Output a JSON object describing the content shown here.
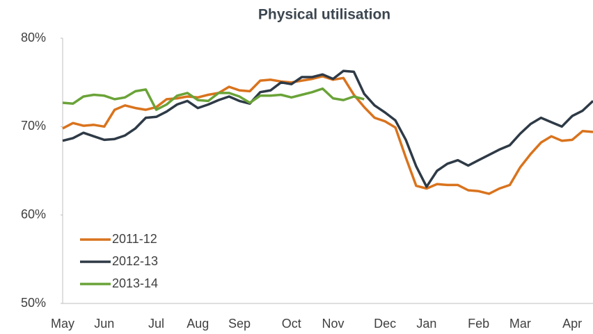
{
  "chart_data": {
    "type": "line",
    "title": "Physical utilisation",
    "categories": [
      "May",
      null,
      null,
      null,
      "Jun",
      null,
      null,
      null,
      null,
      "Jul",
      null,
      null,
      null,
      "Aug",
      null,
      null,
      null,
      "Sep",
      null,
      null,
      null,
      null,
      "Oct",
      null,
      null,
      null,
      "Nov",
      null,
      null,
      null,
      null,
      "Dec",
      null,
      null,
      null,
      "Jan",
      null,
      null,
      null,
      null,
      "Feb",
      null,
      null,
      null,
      "Mar",
      null,
      null,
      null,
      null,
      "Apr",
      null,
      null
    ],
    "series": [
      {
        "name": "2011-12",
        "color": "#d9731d",
        "values": [
          69.8,
          70.4,
          70.1,
          70.2,
          70.0,
          71.9,
          72.4,
          72.1,
          71.9,
          72.2,
          73.1,
          73.2,
          73.4,
          73.3,
          73.6,
          73.8,
          74.5,
          74.1,
          74.0,
          75.2,
          75.3,
          75.1,
          75.0,
          75.2,
          75.4,
          75.7,
          75.3,
          75.5,
          73.6,
          72.2,
          71.0,
          70.6,
          69.9,
          66.5,
          63.3,
          63.0,
          63.5,
          63.4,
          63.4,
          62.8,
          62.7,
          62.4,
          63.0,
          63.4,
          65.4,
          66.9,
          68.2,
          68.9,
          68.4,
          68.5,
          69.5,
          69.4
        ]
      },
      {
        "name": "2012-13",
        "color": "#2e3a46",
        "values": [
          68.4,
          68.7,
          69.3,
          68.9,
          68.5,
          68.6,
          69.0,
          69.8,
          71.0,
          71.1,
          71.7,
          72.5,
          72.9,
          72.1,
          72.5,
          73.0,
          73.4,
          72.9,
          72.6,
          73.9,
          74.1,
          75.0,
          74.8,
          75.6,
          75.6,
          75.9,
          75.4,
          76.3,
          76.2,
          73.7,
          72.4,
          71.6,
          70.7,
          68.5,
          65.5,
          63.2,
          65.0,
          65.8,
          66.2,
          65.6,
          66.2,
          66.8,
          67.4,
          67.9,
          69.2,
          70.3,
          71.0,
          70.5,
          70.0,
          71.2,
          71.8,
          72.9
        ]
      },
      {
        "name": "2013-14",
        "color": "#6aa338",
        "values": [
          72.7,
          72.6,
          73.4,
          73.6,
          73.5,
          73.1,
          73.3,
          74.0,
          74.2,
          71.9,
          72.5,
          73.5,
          73.8,
          73.0,
          72.9,
          73.8,
          73.8,
          73.4,
          72.7,
          73.5,
          73.5,
          73.6,
          73.3,
          73.6,
          73.9,
          74.3,
          73.2,
          73.0,
          73.4,
          73.1,
          null,
          null,
          null,
          null,
          null,
          null,
          null,
          null,
          null,
          null,
          null,
          null,
          null,
          null,
          null,
          null,
          null,
          null,
          null,
          null,
          null,
          null
        ]
      }
    ],
    "ylim": [
      50,
      80
    ],
    "yticks": [
      {
        "value": 50,
        "label": "50%"
      },
      {
        "value": 60,
        "label": "60%"
      },
      {
        "value": 70,
        "label": "70%"
      },
      {
        "value": 80,
        "label": "80%"
      }
    ],
    "grid": false,
    "legend": "lower left"
  }
}
